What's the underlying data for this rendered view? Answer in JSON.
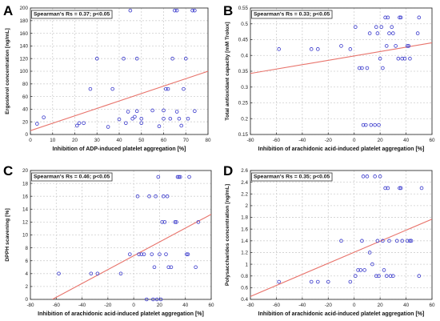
{
  "chart_data": [
    {
      "panel_letter": "A",
      "type": "scatter",
      "annotation": "Spearman's Rs = 0.37; p<0.05",
      "xlabel": "Inhibition of ADP-induced platelet aggregation [%]",
      "ylabel": "Ergosterol concentration [ng/mL]",
      "xlim": [
        0,
        80
      ],
      "ylim": [
        0,
        200
      ],
      "xticks": [
        0,
        10,
        20,
        30,
        40,
        50,
        60,
        70,
        80
      ],
      "yticks": [
        0,
        20,
        40,
        60,
        80,
        100,
        120,
        140,
        160,
        180,
        200
      ],
      "grid": true,
      "trendline": {
        "x": [
          0,
          80
        ],
        "y": [
          6,
          100
        ]
      },
      "points": [
        {
          "x": 3,
          "y": 17
        },
        {
          "x": 6,
          "y": 27
        },
        {
          "x": 21,
          "y": 14
        },
        {
          "x": 22,
          "y": 18
        },
        {
          "x": 24,
          "y": 18
        },
        {
          "x": 27,
          "y": 72
        },
        {
          "x": 30,
          "y": 120
        },
        {
          "x": 35,
          "y": 12
        },
        {
          "x": 37,
          "y": 72
        },
        {
          "x": 40,
          "y": 24
        },
        {
          "x": 42,
          "y": 120
        },
        {
          "x": 43,
          "y": 18
        },
        {
          "x": 44,
          "y": 36
        },
        {
          "x": 45,
          "y": 196
        },
        {
          "x": 46,
          "y": 25
        },
        {
          "x": 47,
          "y": 28
        },
        {
          "x": 48,
          "y": 120
        },
        {
          "x": 48,
          "y": 37
        },
        {
          "x": 50,
          "y": 25
        },
        {
          "x": 50,
          "y": 18
        },
        {
          "x": 55,
          "y": 38
        },
        {
          "x": 58,
          "y": 13
        },
        {
          "x": 60,
          "y": 38
        },
        {
          "x": 60,
          "y": 25
        },
        {
          "x": 61,
          "y": 72
        },
        {
          "x": 62,
          "y": 72
        },
        {
          "x": 63,
          "y": 25
        },
        {
          "x": 64,
          "y": 120
        },
        {
          "x": 65,
          "y": 196
        },
        {
          "x": 66,
          "y": 196
        },
        {
          "x": 66,
          "y": 36
        },
        {
          "x": 67,
          "y": 25
        },
        {
          "x": 68,
          "y": 14
        },
        {
          "x": 69,
          "y": 72
        },
        {
          "x": 70,
          "y": 120
        },
        {
          "x": 71,
          "y": 25
        },
        {
          "x": 73,
          "y": 196
        },
        {
          "x": 74,
          "y": 196
        },
        {
          "x": 74,
          "y": 37
        }
      ]
    },
    {
      "panel_letter": "B",
      "type": "scatter",
      "annotation": "Spearman's Rs = 0.33; p<0.05",
      "xlabel": "Inhibition of arachidonic acid-induced platelet aggregation [%]",
      "ylabel": "Total antioxidant capacity [mM Trolox]",
      "xlim": [
        -80,
        60
      ],
      "ylim": [
        0.15,
        0.55
      ],
      "xticks": [
        -80,
        -60,
        -40,
        -20,
        0,
        20,
        40,
        60
      ],
      "yticks": [
        0.15,
        0.2,
        0.25,
        0.3,
        0.35,
        0.4,
        0.45,
        0.5,
        0.55
      ],
      "grid": true,
      "trendline": {
        "x": [
          -80,
          60
        ],
        "y": [
          0.343,
          0.44
        ]
      },
      "points": [
        {
          "x": -58,
          "y": 0.42
        },
        {
          "x": -33,
          "y": 0.42
        },
        {
          "x": -28,
          "y": 0.42
        },
        {
          "x": -10,
          "y": 0.43
        },
        {
          "x": -3,
          "y": 0.42
        },
        {
          "x": 1,
          "y": 0.49
        },
        {
          "x": 4,
          "y": 0.36
        },
        {
          "x": 6,
          "y": 0.36
        },
        {
          "x": 7,
          "y": 0.18
        },
        {
          "x": 9,
          "y": 0.18
        },
        {
          "x": 10,
          "y": 0.36
        },
        {
          "x": 12,
          "y": 0.47
        },
        {
          "x": 13,
          "y": 0.18
        },
        {
          "x": 16,
          "y": 0.18
        },
        {
          "x": 17,
          "y": 0.49
        },
        {
          "x": 18,
          "y": 0.47
        },
        {
          "x": 19,
          "y": 0.18
        },
        {
          "x": 20,
          "y": 0.39
        },
        {
          "x": 21,
          "y": 0.49
        },
        {
          "x": 22,
          "y": 0.36
        },
        {
          "x": 24,
          "y": 0.52
        },
        {
          "x": 25,
          "y": 0.43
        },
        {
          "x": 26,
          "y": 0.52
        },
        {
          "x": 27,
          "y": 0.47
        },
        {
          "x": 29,
          "y": 0.49
        },
        {
          "x": 30,
          "y": 0.47
        },
        {
          "x": 32,
          "y": 0.43
        },
        {
          "x": 34,
          "y": 0.39
        },
        {
          "x": 35,
          "y": 0.52
        },
        {
          "x": 36,
          "y": 0.52
        },
        {
          "x": 37,
          "y": 0.39
        },
        {
          "x": 39,
          "y": 0.39
        },
        {
          "x": 41,
          "y": 0.43
        },
        {
          "x": 42,
          "y": 0.43
        },
        {
          "x": 43,
          "y": 0.39
        },
        {
          "x": 49,
          "y": 0.47
        },
        {
          "x": 50,
          "y": 0.52
        }
      ]
    },
    {
      "panel_letter": "C",
      "type": "scatter",
      "annotation": "Spearman's Rs = 0.46; p<0.05",
      "xlabel": "Inhibition of arachidonic acid-induced platelet aggregation [%]",
      "ylabel": "DPPH scavening [%]",
      "xlim": [
        -80,
        60
      ],
      "ylim": [
        0,
        20
      ],
      "xticks": [
        -80,
        -60,
        -40,
        -20,
        0,
        20,
        40,
        60
      ],
      "yticks": [
        0,
        2,
        4,
        6,
        8,
        10,
        12,
        14,
        16,
        18,
        20
      ],
      "grid": true,
      "trendline": {
        "x": [
          -63,
          60
        ],
        "y": [
          0,
          13.2
        ]
      },
      "points": [
        {
          "x": -58,
          "y": 4
        },
        {
          "x": -33,
          "y": 4
        },
        {
          "x": -28,
          "y": 4
        },
        {
          "x": -10,
          "y": 4
        },
        {
          "x": -3,
          "y": 7
        },
        {
          "x": 3,
          "y": 16
        },
        {
          "x": 4,
          "y": 7
        },
        {
          "x": 6,
          "y": 7
        },
        {
          "x": 8,
          "y": 7
        },
        {
          "x": 10,
          "y": 0
        },
        {
          "x": 12,
          "y": 16
        },
        {
          "x": 14,
          "y": 7
        },
        {
          "x": 15,
          "y": 0
        },
        {
          "x": 16,
          "y": 5
        },
        {
          "x": 17,
          "y": 16
        },
        {
          "x": 18,
          "y": 0
        },
        {
          "x": 19,
          "y": 19
        },
        {
          "x": 20,
          "y": 7
        },
        {
          "x": 21,
          "y": 0
        },
        {
          "x": 22,
          "y": 12
        },
        {
          "x": 23,
          "y": 16
        },
        {
          "x": 24,
          "y": 12
        },
        {
          "x": 25,
          "y": 7
        },
        {
          "x": 26,
          "y": 16
        },
        {
          "x": 27,
          "y": 5
        },
        {
          "x": 29,
          "y": 5
        },
        {
          "x": 32,
          "y": 12
        },
        {
          "x": 33,
          "y": 12
        },
        {
          "x": 34,
          "y": 19
        },
        {
          "x": 35,
          "y": 19
        },
        {
          "x": 36,
          "y": 19
        },
        {
          "x": 41,
          "y": 7
        },
        {
          "x": 42,
          "y": 7
        },
        {
          "x": 43,
          "y": 19
        },
        {
          "x": 48,
          "y": 5
        },
        {
          "x": 50,
          "y": 12
        }
      ]
    },
    {
      "panel_letter": "D",
      "type": "scatter",
      "annotation": "Spearman's Rs = 0.35; p<0.05",
      "xlabel": "Inhibition of arachidonic acid-induced platelet aggregation [%]",
      "ylabel": "Polysaccharides concentration [ng/mL]",
      "xlim": [
        -80,
        60
      ],
      "ylim": [
        0.4,
        2.6
      ],
      "xticks": [
        -80,
        -60,
        -40,
        -20,
        0,
        20,
        40,
        60
      ],
      "yticks": [
        0.4,
        0.6,
        0.8,
        1.0,
        1.2,
        1.4,
        1.6,
        1.8,
        2.0,
        2.2,
        2.4,
        2.6
      ],
      "grid": true,
      "trendline": {
        "x": [
          -80,
          60
        ],
        "y": [
          0.45,
          1.77
        ]
      },
      "points": [
        {
          "x": -58,
          "y": 0.7
        },
        {
          "x": -33,
          "y": 0.7
        },
        {
          "x": -28,
          "y": 0.7
        },
        {
          "x": -20,
          "y": 0.7
        },
        {
          "x": -10,
          "y": 1.4
        },
        {
          "x": -3,
          "y": 0.7
        },
        {
          "x": 1,
          "y": 0.8
        },
        {
          "x": 3,
          "y": 0.9
        },
        {
          "x": 5,
          "y": 0.9
        },
        {
          "x": 6,
          "y": 1.4
        },
        {
          "x": 7,
          "y": 2.5
        },
        {
          "x": 8,
          "y": 0.9
        },
        {
          "x": 10,
          "y": 2.5
        },
        {
          "x": 12,
          "y": 1.2
        },
        {
          "x": 14,
          "y": 1.0
        },
        {
          "x": 16,
          "y": 2.5
        },
        {
          "x": 17,
          "y": 0.8
        },
        {
          "x": 18,
          "y": 1.4
        },
        {
          "x": 19,
          "y": 0.8
        },
        {
          "x": 20,
          "y": 2.5
        },
        {
          "x": 22,
          "y": 1.4
        },
        {
          "x": 23,
          "y": 0.9
        },
        {
          "x": 24,
          "y": 2.3
        },
        {
          "x": 25,
          "y": 0.8
        },
        {
          "x": 26,
          "y": 2.3
        },
        {
          "x": 27,
          "y": 1.4
        },
        {
          "x": 28,
          "y": 0.8
        },
        {
          "x": 30,
          "y": 0.8
        },
        {
          "x": 33,
          "y": 1.4
        },
        {
          "x": 35,
          "y": 2.3
        },
        {
          "x": 36,
          "y": 2.3
        },
        {
          "x": 37,
          "y": 1.4
        },
        {
          "x": 41,
          "y": 1.4
        },
        {
          "x": 43,
          "y": 1.4
        },
        {
          "x": 44,
          "y": 1.4
        },
        {
          "x": 50,
          "y": 0.8
        },
        {
          "x": 52,
          "y": 2.3
        }
      ]
    }
  ]
}
